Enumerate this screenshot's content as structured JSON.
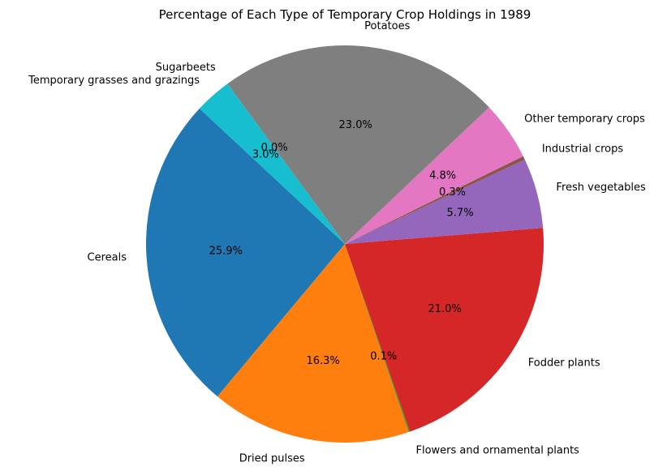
{
  "chart_data": {
    "type": "pie",
    "title": "Percentage of Each Type of Temporary Crop Holdings in 1989",
    "start_angle_deg": 137,
    "direction": "counterclockwise",
    "slices": [
      {
        "label": "Cereals",
        "value": 25.9,
        "pct_label": "25.9%",
        "color": "#1f77b4"
      },
      {
        "label": "Dried pulses",
        "value": 16.3,
        "pct_label": "16.3%",
        "color": "#ff7f0e"
      },
      {
        "label": "Flowers and ornamental plants",
        "value": 0.1,
        "pct_label": "0.1%",
        "color": "#2ca02c"
      },
      {
        "label": "Fodder plants",
        "value": 21.0,
        "pct_label": "21.0%",
        "color": "#d62728"
      },
      {
        "label": "Fresh vegetables",
        "value": 5.7,
        "pct_label": "5.7%",
        "color": "#9467bd"
      },
      {
        "label": "Industrial crops",
        "value": 0.3,
        "pct_label": "0.3%",
        "color": "#8c564b"
      },
      {
        "label": "Other temporary crops",
        "value": 4.8,
        "pct_label": "4.8%",
        "color": "#e377c2"
      },
      {
        "label": "Potatoes",
        "value": 23.0,
        "pct_label": "23.0%",
        "color": "#7f7f7f"
      },
      {
        "label": "Sugarbeets",
        "value": 0.0,
        "pct_label": "0.0%",
        "color": "#bcbd22"
      },
      {
        "label": "Temporary grasses and grazings",
        "value": 3.0,
        "pct_label": "3.0%",
        "color": "#17becf"
      }
    ],
    "legend": "none"
  }
}
